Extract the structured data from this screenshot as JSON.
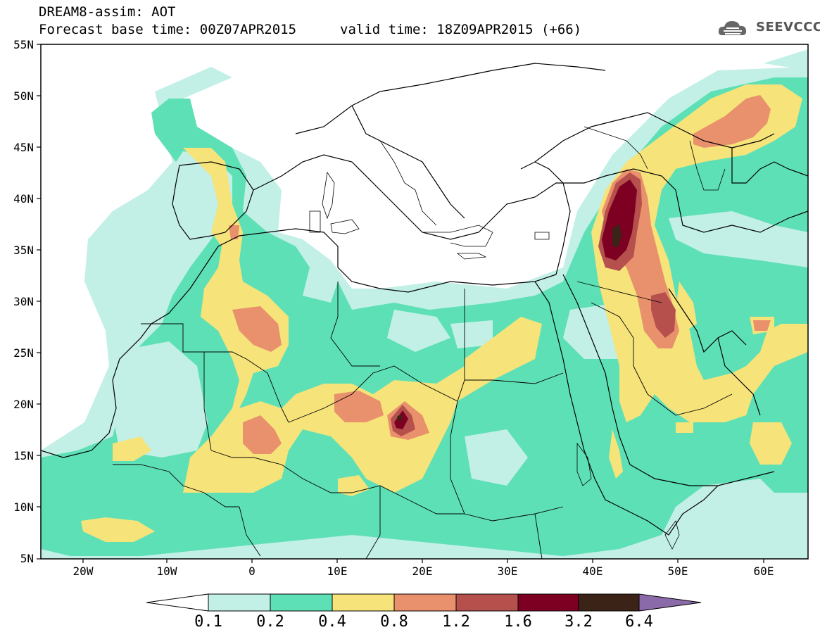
{
  "header": {
    "title_line1": "DREAM8-assim: AOT",
    "forecast_base": "Forecast base time: 00Z07APR2015",
    "valid_time": "valid time: 18Z09APR2015 (+66)"
  },
  "logo": {
    "text": "SEEVCCC",
    "icon": "cloud-icon"
  },
  "axes": {
    "lat_labels": [
      "55N",
      "50N",
      "45N",
      "40N",
      "35N",
      "30N",
      "25N",
      "20N",
      "15N",
      "10N",
      "5N"
    ],
    "lon_labels": [
      "20W",
      "10W",
      "0",
      "10E",
      "20E",
      "30E",
      "40E",
      "50E",
      "60E"
    ]
  },
  "colorbar": {
    "labels": [
      "0.1",
      "0.2",
      "0.4",
      "0.8",
      "1.2",
      "1.6",
      "3.2",
      "6.4"
    ],
    "colors": [
      "#c2efe6",
      "#5ee0b6",
      "#f6e37a",
      "#e9906c",
      "#b5504d",
      "#7d0022",
      "#3b2417",
      "#8b6aaa"
    ]
  },
  "legend_colors": {
    "c01": "#c2efe6",
    "c02": "#5ee0b6",
    "c04": "#f6e37a",
    "c08": "#e9906c",
    "c12": "#b5504d",
    "c16": "#7d0022",
    "c32": "#3b2417"
  }
}
